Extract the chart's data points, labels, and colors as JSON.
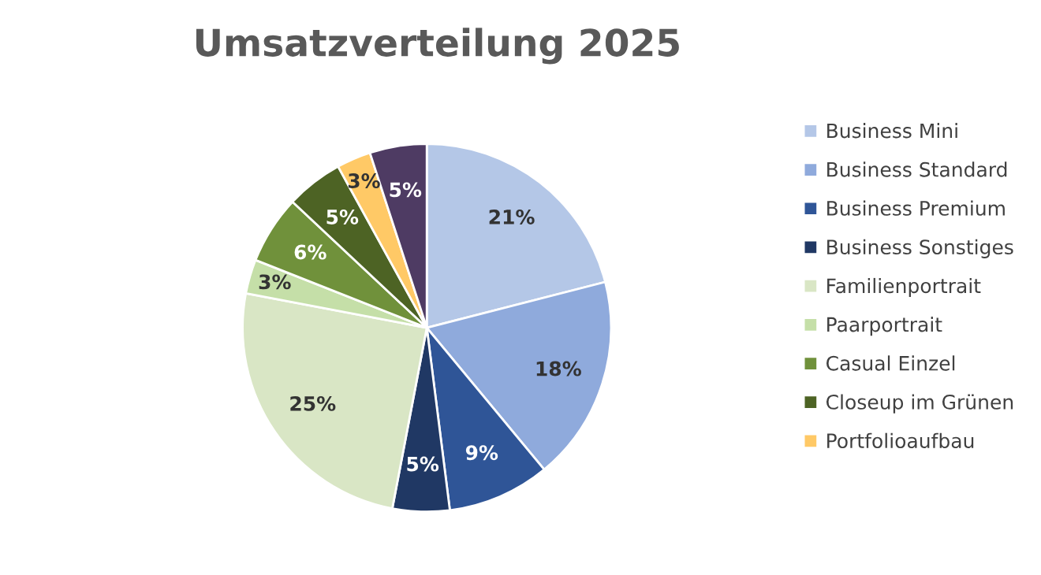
{
  "chart_data": {
    "type": "pie",
    "title": "Umsatzverteilung 2025",
    "categories": [
      "Business Mini",
      "Business Standard",
      "Business Premium",
      "Business Sonstiges",
      "Familienportrait",
      "Paarportrait",
      "Casual Einzel",
      "Closeup im Grünen",
      "Portfolioaufbau",
      null
    ],
    "values": [
      21,
      18,
      9,
      5,
      25,
      3,
      6,
      5,
      3,
      5
    ],
    "value_labels": [
      "21%",
      "18%",
      "9%",
      "5%",
      "25%",
      "3%",
      "6%",
      "5%",
      "3%",
      "5%"
    ],
    "colors": [
      "#b4c7e7",
      "#8faadc",
      "#2f5597",
      "#203864",
      "#d9e6c5",
      "#c5dfa8",
      "#70913b",
      "#4d6324",
      "#ffc966",
      "#4e3b63"
    ],
    "legend": "right"
  }
}
